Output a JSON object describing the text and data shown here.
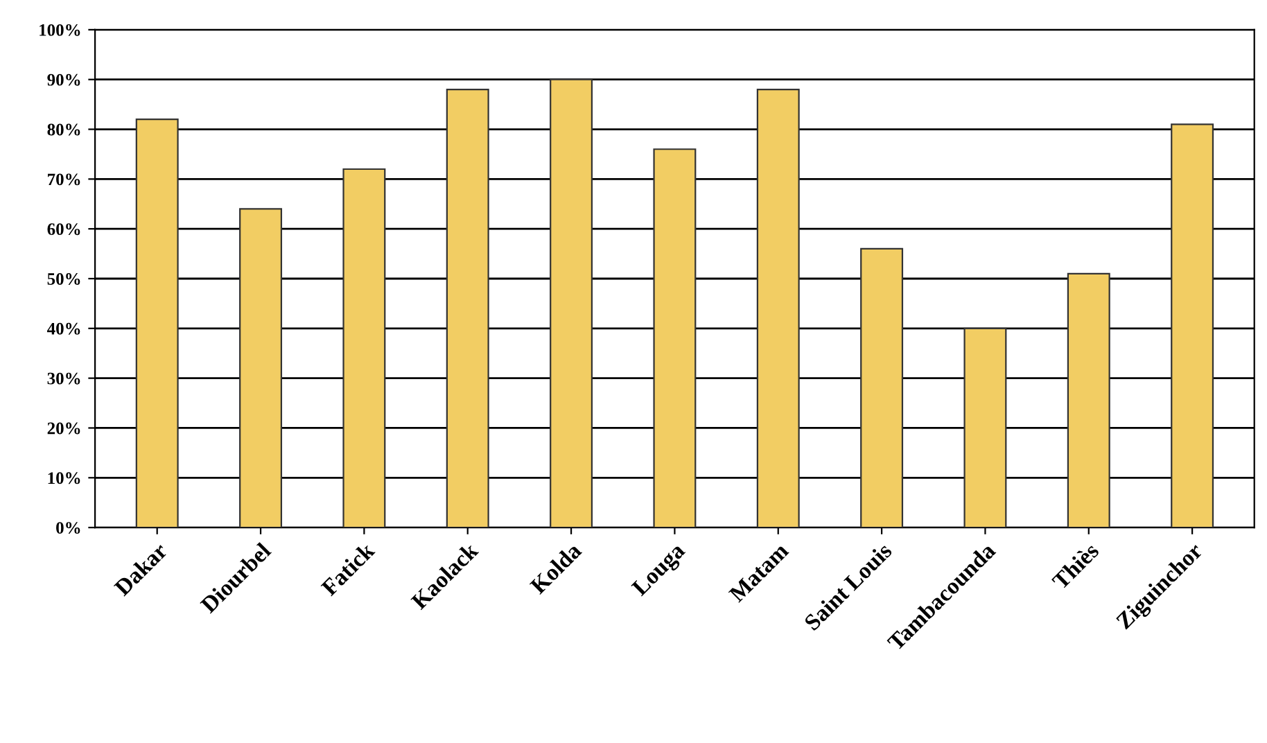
{
  "chart_data": {
    "type": "bar",
    "categories": [
      "Dakar",
      "Diourbel",
      "Fatick",
      "Kaolack",
      "Kolda",
      "Louga",
      "Matam",
      "Saint Louis",
      "Tambacounda",
      "Thiès",
      "Ziguinchor"
    ],
    "values": [
      82,
      64,
      72,
      88,
      90,
      76,
      88,
      56,
      40,
      51,
      81
    ],
    "color": "#f2cd63",
    "ylim": [
      0,
      100
    ],
    "yticks": [
      {
        "value": 0,
        "label": "0%"
      },
      {
        "value": 10,
        "label": "10%"
      },
      {
        "value": 20,
        "label": "20%"
      },
      {
        "value": 30,
        "label": "30%"
      },
      {
        "value": 40,
        "label": "40%"
      },
      {
        "value": 50,
        "label": "50%"
      },
      {
        "value": 60,
        "label": "60%"
      },
      {
        "value": 70,
        "label": "70%"
      },
      {
        "value": 80,
        "label": "80%"
      },
      {
        "value": 90,
        "label": "90%"
      },
      {
        "value": 100,
        "label": "100%"
      }
    ],
    "grid": "y"
  }
}
